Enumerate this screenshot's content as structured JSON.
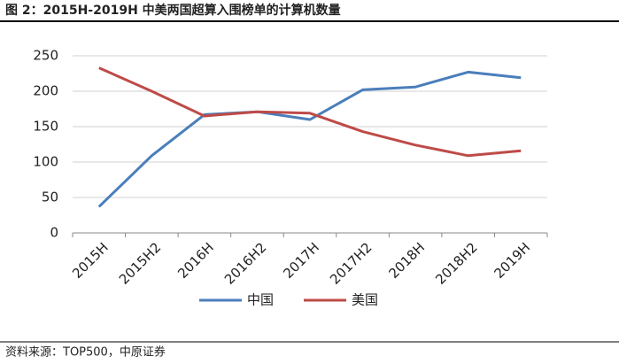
{
  "chart_data": {
    "type": "line",
    "title": "图 2：2015H-2019H 中美两国超算入围榜单的计算机数量",
    "source": "资料来源：TOP500，中原证券",
    "categories": [
      "2015H",
      "2015H2",
      "2016H",
      "2016H2",
      "2017H",
      "2017H2",
      "2018H",
      "2018H2",
      "2019H"
    ],
    "series": [
      {
        "name": "中国",
        "color": "#4a7ebb",
        "values": [
          37,
          109,
          167,
          171,
          160,
          202,
          206,
          227,
          219
        ]
      },
      {
        "name": "美国",
        "color": "#be4b48",
        "values": [
          233,
          200,
          165,
          171,
          169,
          143,
          124,
          109,
          116
        ]
      }
    ],
    "ylim": [
      0,
      250
    ],
    "yticks": [
      0,
      50,
      100,
      150,
      200,
      250
    ],
    "grid": true,
    "legend": "bottom"
  }
}
